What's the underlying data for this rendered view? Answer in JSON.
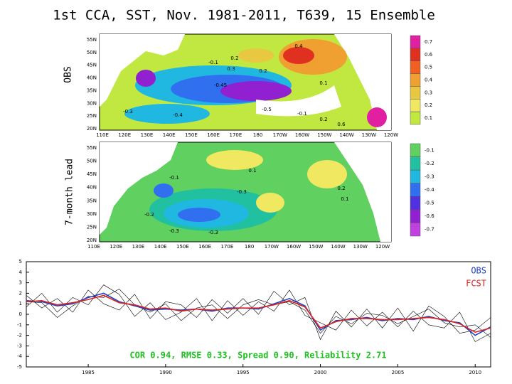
{
  "title": "1st CCA, SST, Nov. 1981-2011, T639, 15 Ensemble",
  "maps": [
    {
      "label": "OBS",
      "lat_labels": [
        "55N",
        "50N",
        "45N",
        "40N",
        "35N",
        "30N",
        "25N",
        "20N"
      ],
      "lon_labels": [
        "110E",
        "120E",
        "130E",
        "140E",
        "150E",
        "160E",
        "170E",
        "180",
        "170W",
        "160W",
        "150W",
        "140W",
        "130W",
        "120W"
      ],
      "colorbar": {
        "labels": [
          0.7,
          0.6,
          0.5,
          0.4,
          0.3,
          0.2,
          0.1
        ],
        "colors": [
          "#e020a0",
          "#e03020",
          "#f06020",
          "#f0a030",
          "#e8c840",
          "#f0e860",
          "#c0e840"
        ]
      },
      "contour_labels": [
        "0.4",
        "0.2",
        "-0.1",
        "0.3",
        "0.2",
        "-0.45",
        "0.1",
        "-0.3",
        "-0.4",
        "-0.5",
        "-0.1",
        "0.2",
        "0.6"
      ]
    },
    {
      "label": "7-month lead",
      "lat_labels": [
        "55N",
        "50N",
        "45N",
        "40N",
        "35N",
        "30N",
        "25N",
        "20N"
      ],
      "lon_labels": [
        "110E",
        "120E",
        "130E",
        "140E",
        "150E",
        "160E",
        "170E",
        "180",
        "170W",
        "160W",
        "150W",
        "140W",
        "130W",
        "120W"
      ],
      "colorbar": {
        "labels": [
          -0.1,
          -0.2,
          -0.3,
          -0.4,
          -0.5,
          -0.6,
          -0.7
        ],
        "colors": [
          "#60d060",
          "#20c0a0",
          "#20b8e0",
          "#3070f0",
          "#5030e0",
          "#9020d0",
          "#c040e0"
        ]
      },
      "contour_labels": [
        "0.1",
        "-0.1",
        "-0.3",
        "0.2",
        "0.1",
        "-0.2",
        "-0.3",
        "-0.3"
      ]
    }
  ],
  "chart_data": {
    "type": "line",
    "x": [
      1981,
      1982,
      1983,
      1984,
      1985,
      1986,
      1987,
      1988,
      1989,
      1990,
      1991,
      1992,
      1993,
      1994,
      1995,
      1996,
      1997,
      1998,
      1999,
      2000,
      2001,
      2002,
      2003,
      2004,
      2005,
      2006,
      2007,
      2008,
      2009,
      2010,
      2011
    ],
    "xlim": [
      1981,
      2011
    ],
    "xticks": [
      1985,
      1990,
      1995,
      2000,
      2005,
      2010
    ],
    "ylim": [
      -5,
      5
    ],
    "yticks": [
      -5,
      -4,
      -3,
      -2,
      -1,
      0,
      1,
      2,
      3,
      4,
      5
    ],
    "annotation": "COR 0.94, RMSE 0.33, Spread 0.90, Reliability 2.71",
    "series": [
      {
        "color": "#000000",
        "values": [
          1.8,
          0.6,
          1.5,
          0.2,
          2.3,
          1.0,
          0.4,
          1.9,
          -0.4,
          1.2,
          0.9,
          -0.3,
          1.4,
          0.1,
          1.5,
          0.0,
          2.2,
          0.9,
          1.6,
          -2.4,
          0.3,
          -1.2,
          0.5,
          -1.3,
          0.6,
          -1.6,
          0.8,
          -0.2,
          -1.8,
          -1.5,
          -0.3
        ]
      },
      {
        "color": "#000000",
        "values": [
          0.7,
          2.0,
          0.2,
          1.6,
          0.9,
          2.8,
          1.9,
          -0.2,
          1.1,
          -0.5,
          0.2,
          1.5,
          -0.6,
          1.3,
          -0.1,
          1.2,
          0.3,
          2.3,
          -0.1,
          -0.8,
          -1.5,
          0.4,
          -1.1,
          0.2,
          -1.2,
          0.3,
          -1.0,
          -1.3,
          0.2,
          -2.6,
          -1.8
        ]
      },
      {
        "color": "#000000",
        "values": [
          1.2,
          1.1,
          -0.3,
          0.8,
          1.7,
          1.6,
          2.4,
          0.9,
          0.2,
          1.0,
          -0.6,
          0.6,
          0.9,
          -0.4,
          0.9,
          1.4,
          0.9,
          1.2,
          0.4,
          -1.8,
          -0.2,
          -0.9,
          0.1,
          -0.1,
          -0.9,
          -0.2,
          0.5,
          -0.8,
          -1.2,
          -1.0,
          -2.2
        ]
      },
      {
        "name": "OBS",
        "color": "#2040c0",
        "values": [
          1.3,
          1.2,
          0.8,
          1.0,
          1.6,
          2.0,
          1.2,
          0.8,
          0.4,
          0.5,
          0.4,
          0.5,
          0.3,
          0.6,
          0.6,
          0.5,
          1.0,
          1.5,
          0.8,
          -1.5,
          -0.6,
          -0.5,
          -0.3,
          -0.6,
          -0.4,
          -0.5,
          -0.2,
          -0.6,
          -0.8,
          -2.0,
          -1.2
        ]
      },
      {
        "name": "FCST",
        "color": "#e02020",
        "values": [
          1.2,
          1.3,
          0.9,
          1.1,
          1.4,
          1.8,
          1.1,
          0.9,
          0.5,
          0.6,
          0.3,
          0.5,
          0.4,
          0.5,
          0.6,
          0.6,
          0.9,
          1.3,
          0.7,
          -1.3,
          -0.7,
          -0.4,
          -0.4,
          -0.5,
          -0.5,
          -0.4,
          -0.3,
          -0.5,
          -0.9,
          -1.7,
          -1.3
        ]
      }
    ]
  }
}
